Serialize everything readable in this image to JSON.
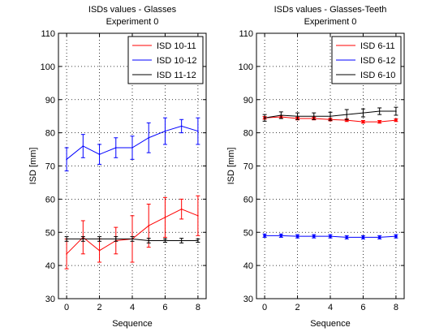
{
  "chart_data": [
    {
      "type": "line",
      "title": "ISDs values - Glasses",
      "subtitle": "Experiment 0",
      "xlabel": "Sequence",
      "ylabel": "ISD [mm]",
      "xlim": [
        -0.5,
        8.5
      ],
      "ylim": [
        30,
        110
      ],
      "x_ticks": [
        0,
        2,
        4,
        6,
        8
      ],
      "y_ticks": [
        30,
        40,
        50,
        60,
        70,
        80,
        90,
        100,
        110
      ],
      "grid": true,
      "legend_position": "top-right",
      "x": [
        0,
        1,
        2,
        3,
        4,
        5,
        6,
        7,
        8
      ],
      "series": [
        {
          "name": "ISD 10-11",
          "color": "#ff0000",
          "marker": "none",
          "values": [
            43.5,
            48.5,
            44.5,
            47.5,
            48.0,
            52.0,
            54.5,
            57.0,
            55.0
          ],
          "errors": [
            4.5,
            5.0,
            3.5,
            4.0,
            7.0,
            6.5,
            6.0,
            3.0,
            6.0
          ]
        },
        {
          "name": "ISD 10-12",
          "color": "#0000ff",
          "marker": "none",
          "values": [
            72.0,
            76.0,
            73.5,
            75.5,
            75.5,
            78.5,
            80.5,
            82.0,
            80.5
          ],
          "errors": [
            3.5,
            3.5,
            3.0,
            3.0,
            3.5,
            4.5,
            4.0,
            2.0,
            4.0
          ]
        },
        {
          "name": "ISD 11-12",
          "color": "#000000",
          "marker": "none",
          "values": [
            48.0,
            48.0,
            48.0,
            48.0,
            48.0,
            47.5,
            47.5,
            47.5,
            47.5
          ],
          "errors": [
            0.7,
            0.7,
            0.7,
            0.7,
            0.7,
            0.7,
            0.5,
            0.7,
            0.5
          ]
        }
      ]
    },
    {
      "type": "line",
      "title": "ISDs values - Glasses-Teeth",
      "subtitle": "Experiment 0",
      "xlabel": "Sequence",
      "ylabel": "ISD [mm]",
      "xlim": [
        -0.5,
        8.5
      ],
      "ylim": [
        30,
        110
      ],
      "x_ticks": [
        0,
        2,
        4,
        6,
        8
      ],
      "y_ticks": [
        30,
        40,
        50,
        60,
        70,
        80,
        90,
        100,
        110
      ],
      "grid": true,
      "legend_position": "top-right",
      "x": [
        0,
        1,
        2,
        3,
        4,
        5,
        6,
        7,
        8
      ],
      "series": [
        {
          "name": "ISD 6-11",
          "color": "#ff0000",
          "marker": "dot",
          "values": [
            84.5,
            84.8,
            84.3,
            84.3,
            84.0,
            83.8,
            83.3,
            83.3,
            83.8
          ],
          "errors": [
            0.4,
            0.4,
            0.4,
            0.4,
            0.4,
            0.4,
            0.4,
            0.4,
            0.4
          ]
        },
        {
          "name": "ISD 6-12",
          "color": "#0000ff",
          "marker": "dot",
          "values": [
            49.0,
            49.0,
            48.8,
            48.8,
            48.8,
            48.5,
            48.5,
            48.5,
            48.8
          ],
          "errors": [
            0.5,
            0.5,
            0.5,
            0.5,
            0.5,
            0.5,
            0.5,
            0.5,
            0.5
          ]
        },
        {
          "name": "ISD 6-10",
          "color": "#000000",
          "marker": "none",
          "values": [
            84.5,
            85.3,
            85.0,
            85.0,
            85.0,
            85.5,
            86.0,
            86.5,
            86.5
          ],
          "errors": [
            1.0,
            1.0,
            1.0,
            1.0,
            1.2,
            1.5,
            1.2,
            1.0,
            1.2
          ]
        }
      ]
    }
  ]
}
